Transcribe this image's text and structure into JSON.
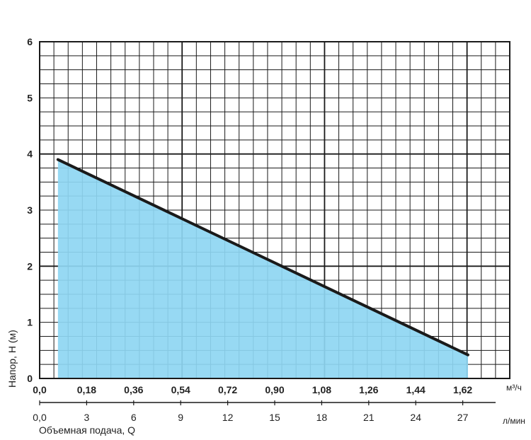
{
  "chart_data": {
    "type": "area",
    "xlabel": "Объемная подача, Q",
    "ylabel": "Напор, H (м)",
    "x_unit_primary": "м³/ч",
    "x_unit_secondary": "л/мин",
    "xlim": [
      0,
      1.8
    ],
    "ylim": [
      0,
      6
    ],
    "grid": true,
    "x_ticks_primary": [
      "0,0",
      "0,18",
      "0,36",
      "0,54",
      "0,72",
      "0,90",
      "1,08",
      "1,26",
      "1,44",
      "1,62"
    ],
    "x_ticks_primary_values": [
      0,
      0.18,
      0.36,
      0.54,
      0.72,
      0.9,
      1.08,
      1.26,
      1.44,
      1.62
    ],
    "x_ticks_secondary": [
      "0,0",
      "3",
      "6",
      "9",
      "12",
      "15",
      "18",
      "21",
      "24",
      "27"
    ],
    "x_ticks_secondary_values": [
      0,
      3,
      6,
      9,
      12,
      15,
      18,
      21,
      24,
      27
    ],
    "y_ticks": [
      "0",
      "1",
      "2",
      "3",
      "4",
      "5",
      "6"
    ],
    "y_ticks_values": [
      0,
      1,
      2,
      3,
      4,
      5,
      6
    ],
    "series": [
      {
        "x": [
          0.07,
          1.64
        ],
        "y": [
          3.9,
          0.42
        ]
      }
    ],
    "colors": {
      "fill": "#8ed6f2",
      "line": "#1a1a1a",
      "grid": "#1a1a1a"
    }
  }
}
